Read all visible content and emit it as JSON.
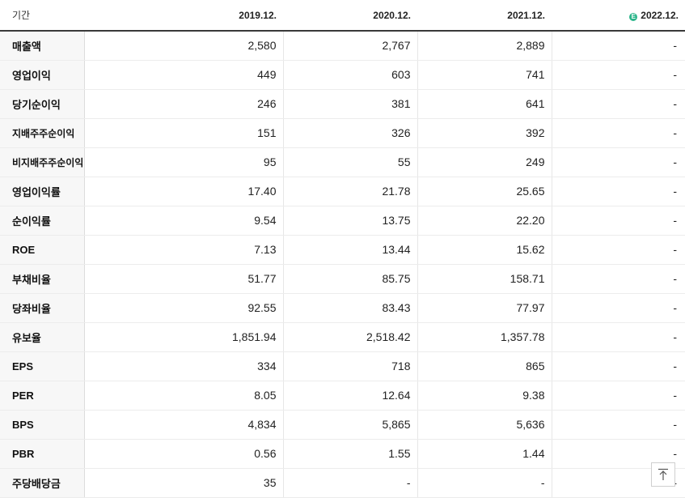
{
  "header": {
    "label": "기간",
    "periods": [
      "2019.12.",
      "2020.12.",
      "2021.12.",
      "2022.12."
    ],
    "estimate_badge": "E"
  },
  "rows": [
    {
      "label": "매출액",
      "values": [
        "2,580",
        "2,767",
        "2,889",
        "-"
      ]
    },
    {
      "label": "영업이익",
      "values": [
        "449",
        "603",
        "741",
        "-"
      ]
    },
    {
      "label": "당기순이익",
      "values": [
        "246",
        "381",
        "641",
        "-"
      ]
    },
    {
      "label": "지배주주순이익",
      "values": [
        "151",
        "326",
        "392",
        "-"
      ]
    },
    {
      "label": "비지배주주순이익",
      "values": [
        "95",
        "55",
        "249",
        "-"
      ]
    },
    {
      "label": "영업이익률",
      "values": [
        "17.40",
        "21.78",
        "25.65",
        "-"
      ]
    },
    {
      "label": "순이익률",
      "values": [
        "9.54",
        "13.75",
        "22.20",
        "-"
      ]
    },
    {
      "label": "ROE",
      "values": [
        "7.13",
        "13.44",
        "15.62",
        "-"
      ]
    },
    {
      "label": "부채비율",
      "values": [
        "51.77",
        "85.75",
        "158.71",
        "-"
      ]
    },
    {
      "label": "당좌비율",
      "values": [
        "92.55",
        "83.43",
        "77.97",
        "-"
      ]
    },
    {
      "label": "유보율",
      "values": [
        "1,851.94",
        "2,518.42",
        "1,357.78",
        "-"
      ]
    },
    {
      "label": "EPS",
      "values": [
        "334",
        "718",
        "865",
        "-"
      ]
    },
    {
      "label": "PER",
      "values": [
        "8.05",
        "12.64",
        "9.38",
        "-"
      ]
    },
    {
      "label": "BPS",
      "values": [
        "4,834",
        "5,865",
        "5,636",
        "-"
      ]
    },
    {
      "label": "PBR",
      "values": [
        "0.56",
        "1.55",
        "1.44",
        "-"
      ]
    },
    {
      "label": "주당배당금",
      "values": [
        "35",
        "-",
        "-",
        "-"
      ]
    }
  ],
  "scroll_top": {
    "icon": "arrow-up-icon"
  }
}
